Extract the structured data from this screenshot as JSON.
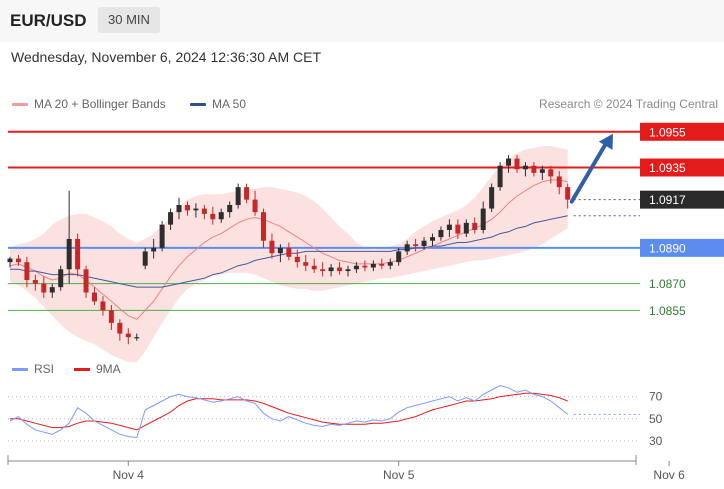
{
  "header": {
    "symbol": "EUR/USD",
    "timeframe": "30 MIN"
  },
  "datetime": "Wednesday, November 6, 2024 12:36:30 AM CET",
  "legend": {
    "ma20": "MA 20 + Bollinger Bands",
    "ma50": "MA 50",
    "research": "Research © 2024 Trading Central"
  },
  "colors": {
    "up": "#2e2e2e",
    "down": "#c62828",
    "resistance": "#e31b1b",
    "support": "#5b8def",
    "target": "#4caf50",
    "bb_fill": "#fcdcdc",
    "ma20": "#f08080",
    "ma50": "#3f5b9a",
    "rsi": "#7b9cff",
    "rsi_ma": "#e31b1b",
    "arrow": "#2f5fa7"
  },
  "chart_data": [
    {
      "type": "candlestick",
      "title": "EUR/USD 30 MIN",
      "ylim": [
        1.083,
        1.097
      ],
      "x_ticks": [
        "Nov 4",
        "Nov 5",
        "Nov 6"
      ],
      "x_tick_index": [
        14,
        46,
        78
      ],
      "candles": [
        [
          1.0882,
          1.0885,
          1.0879,
          1.0884
        ],
        [
          1.0884,
          1.0886,
          1.088,
          1.0882
        ],
        [
          1.0882,
          1.0885,
          1.0868,
          1.0872
        ],
        [
          1.0872,
          1.0875,
          1.0866,
          1.087
        ],
        [
          1.087,
          1.0874,
          1.0862,
          1.0865
        ],
        [
          1.0865,
          1.087,
          1.0862,
          1.0868
        ],
        [
          1.0868,
          1.088,
          1.0866,
          1.0878
        ],
        [
          1.0878,
          1.0922,
          1.087,
          1.0895
        ],
        [
          1.0895,
          1.0898,
          1.0874,
          1.0878
        ],
        [
          1.0878,
          1.088,
          1.0862,
          1.0865
        ],
        [
          1.0865,
          1.0868,
          1.0858,
          1.086
        ],
        [
          1.086,
          1.0863,
          1.0852,
          1.0855
        ],
        [
          1.0855,
          1.0858,
          1.0844,
          1.0848
        ],
        [
          1.0848,
          1.085,
          1.0838,
          1.0842
        ],
        [
          1.0842,
          1.0845,
          1.0836,
          1.084
        ],
        [
          1.084,
          1.0842,
          1.0838,
          1.084
        ],
        [
          1.088,
          1.089,
          1.0878,
          1.0888
        ],
        [
          1.0888,
          1.0895,
          1.0884,
          1.089
        ],
        [
          1.089,
          1.0905,
          1.0888,
          1.0903
        ],
        [
          1.0903,
          1.0912,
          1.09,
          1.091
        ],
        [
          1.091,
          1.0918,
          1.0906,
          1.0914
        ],
        [
          1.0914,
          1.0916,
          1.0908,
          1.0911
        ],
        [
          1.0911,
          1.0915,
          1.0907,
          1.0912
        ],
        [
          1.0912,
          1.0914,
          1.0906,
          1.0909
        ],
        [
          1.0909,
          1.0913,
          1.0903,
          1.0906
        ],
        [
          1.0906,
          1.0912,
          1.0904,
          1.091
        ],
        [
          1.091,
          1.0916,
          1.0907,
          1.0914
        ],
        [
          1.0914,
          1.0926,
          1.0912,
          1.0924
        ],
        [
          1.0924,
          1.0926,
          1.0915,
          1.0917
        ],
        [
          1.0917,
          1.0922,
          1.0908,
          1.091
        ],
        [
          1.091,
          1.0912,
          1.089,
          1.0894
        ],
        [
          1.0894,
          1.0898,
          1.0884,
          1.0887
        ],
        [
          1.0887,
          1.0892,
          1.0882,
          1.089
        ],
        [
          1.089,
          1.0893,
          1.0883,
          1.0885
        ],
        [
          1.0885,
          1.0889,
          1.0879,
          1.0882
        ],
        [
          1.0882,
          1.0886,
          1.0877,
          1.088
        ],
        [
          1.088,
          1.0884,
          1.0876,
          1.0878
        ],
        [
          1.0878,
          1.0882,
          1.0874,
          1.0877
        ],
        [
          1.0877,
          1.0881,
          1.0874,
          1.0879
        ],
        [
          1.0879,
          1.0882,
          1.0875,
          1.0877
        ],
        [
          1.0877,
          1.088,
          1.0874,
          1.0878
        ],
        [
          1.0878,
          1.0882,
          1.0876,
          1.088
        ],
        [
          1.088,
          1.0883,
          1.0877,
          1.0879
        ],
        [
          1.0879,
          1.0883,
          1.0877,
          1.0881
        ],
        [
          1.0881,
          1.0884,
          1.0878,
          1.088
        ],
        [
          1.088,
          1.0884,
          1.0878,
          1.0882
        ],
        [
          1.0882,
          1.089,
          1.088,
          1.0888
        ],
        [
          1.0888,
          1.0894,
          1.0886,
          1.0892
        ],
        [
          1.0892,
          1.0895,
          1.0888,
          1.0891
        ],
        [
          1.0891,
          1.0896,
          1.0889,
          1.0894
        ],
        [
          1.0894,
          1.0898,
          1.0891,
          1.0896
        ],
        [
          1.0896,
          1.0902,
          1.0894,
          1.09
        ],
        [
          1.09,
          1.0906,
          1.0896,
          1.0903
        ],
        [
          1.0903,
          1.0906,
          1.0895,
          1.0898
        ],
        [
          1.0898,
          1.0906,
          1.0896,
          1.0904
        ],
        [
          1.0904,
          1.0907,
          1.0898,
          1.09
        ],
        [
          1.09,
          1.0916,
          1.0898,
          1.0912
        ],
        [
          1.0912,
          1.0926,
          1.091,
          1.0924
        ],
        [
          1.0924,
          1.0938,
          1.0922,
          1.0936
        ],
        [
          1.0936,
          1.0942,
          1.0932,
          1.094
        ],
        [
          1.094,
          1.0942,
          1.0932,
          1.0934
        ],
        [
          1.0934,
          1.0938,
          1.093,
          1.0936
        ],
        [
          1.0936,
          1.0938,
          1.093,
          1.0932
        ],
        [
          1.0932,
          1.0936,
          1.0928,
          1.0934
        ],
        [
          1.0934,
          1.0936,
          1.0926,
          1.093
        ],
        [
          1.093,
          1.0933,
          1.092,
          1.0924
        ],
        [
          1.0924,
          1.0926,
          1.0912,
          1.0917
        ]
      ],
      "ma20": [
        1.088,
        1.0881,
        1.0879,
        1.0877,
        1.0874,
        1.0872,
        1.0873,
        1.0876,
        1.0875,
        1.0872,
        1.0868,
        1.0864,
        1.086,
        1.0856,
        1.0852,
        1.085,
        1.0855,
        1.086,
        1.0867,
        1.0874,
        1.088,
        1.0885,
        1.0889,
        1.0893,
        1.0896,
        1.0898,
        1.0901,
        1.0904,
        1.0906,
        1.0907,
        1.0906,
        1.0904,
        1.0902,
        1.0899,
        1.0896,
        1.0893,
        1.089,
        1.0887,
        1.0885,
        1.0883,
        1.0882,
        1.0881,
        1.0881,
        1.0881,
        1.0881,
        1.0882,
        1.0883,
        1.0885,
        1.0887,
        1.0889,
        1.0891,
        1.0893,
        1.0895,
        1.0897,
        1.0899,
        1.0901,
        1.0903,
        1.0906,
        1.091,
        1.0915,
        1.0919,
        1.0922,
        1.0925,
        1.0927,
        1.0928,
        1.0928,
        1.0927
      ],
      "ma50": [
        1.0878,
        1.0878,
        1.0877,
        1.0877,
        1.0876,
        1.0875,
        1.0875,
        1.0875,
        1.0875,
        1.0874,
        1.0873,
        1.0872,
        1.0871,
        1.087,
        1.0869,
        1.0868,
        1.0868,
        1.0868,
        1.0868,
        1.0869,
        1.087,
        1.0871,
        1.0872,
        1.0873,
        1.0875,
        1.0876,
        1.0878,
        1.088,
        1.0881,
        1.0883,
        1.0884,
        1.0885,
        1.0886,
        1.0887,
        1.0887,
        1.0888,
        1.0888,
        1.0888,
        1.0888,
        1.0888,
        1.0888,
        1.0888,
        1.0888,
        1.0888,
        1.0888,
        1.0888,
        1.0889,
        1.0889,
        1.089,
        1.089,
        1.0891,
        1.0891,
        1.0892,
        1.0893,
        1.0893,
        1.0894,
        1.0895,
        1.0896,
        1.0898,
        1.0899,
        1.0901,
        1.0902,
        1.0904,
        1.0905,
        1.0906,
        1.0907,
        1.0908
      ],
      "bb_upper": [
        1.089,
        1.0892,
        1.0893,
        1.0895,
        1.0898,
        1.0903,
        1.0906,
        1.0908,
        1.0909,
        1.0909,
        1.0907,
        1.0905,
        1.0902,
        1.0898,
        1.0895,
        1.0893,
        1.0895,
        1.0898,
        1.0902,
        1.0908,
        1.0913,
        1.0917,
        1.0919,
        1.092,
        1.092,
        1.092,
        1.0921,
        1.0922,
        1.0923,
        1.0923,
        1.0924,
        1.0924,
        1.0923,
        1.0922,
        1.0921,
        1.0919,
        1.0916,
        1.0912,
        1.0907,
        1.0902,
        1.0898,
        1.0893,
        1.089,
        1.0889,
        1.089,
        1.0891,
        1.0892,
        1.0895,
        1.0899,
        1.0902,
        1.0905,
        1.0907,
        1.0909,
        1.0911,
        1.0914,
        1.0918,
        1.0924,
        1.093,
        1.0936,
        1.094,
        1.0943,
        1.0945,
        1.0946,
        1.0947,
        1.0947,
        1.0946,
        1.0945
      ],
      "bb_lower": [
        1.0871,
        1.0869,
        1.0866,
        1.0862,
        1.0857,
        1.0852,
        1.0847,
        1.0843,
        1.084,
        1.0838,
        1.0836,
        1.0833,
        1.083,
        1.0828,
        1.0826,
        1.0826,
        1.0832,
        1.084,
        1.0848,
        1.0855,
        1.0862,
        1.0867,
        1.087,
        1.0872,
        1.0874,
        1.0875,
        1.0876,
        1.0876,
        1.0876,
        1.0875,
        1.0873,
        1.0871,
        1.0869,
        1.0868,
        1.0867,
        1.0867,
        1.0866,
        1.0866,
        1.0867,
        1.0868,
        1.0869,
        1.087,
        1.0871,
        1.0872,
        1.0873,
        1.0873,
        1.0874,
        1.0875,
        1.0876,
        1.0877,
        1.0878,
        1.0879,
        1.088,
        1.0881,
        1.0882,
        1.0883,
        1.0883,
        1.0884,
        1.0885,
        1.0886,
        1.0887,
        1.0888,
        1.089,
        1.0892,
        1.0895,
        1.0898,
        1.0901
      ],
      "levels": [
        {
          "label": "1.0955",
          "value": 1.0955,
          "kind": "resistance"
        },
        {
          "label": "1.0935",
          "value": 1.0935,
          "kind": "resistance"
        },
        {
          "label": "1.0917",
          "value": 1.0917,
          "kind": "current"
        },
        {
          "label": "1.0890",
          "value": 1.089,
          "kind": "pivot"
        },
        {
          "label": "1.0870",
          "value": 1.087,
          "kind": "support"
        },
        {
          "label": "1.0855",
          "value": 1.0855,
          "kind": "support"
        }
      ],
      "target_arrow": {
        "from": {
          "index": 66,
          "value": 1.0917
        },
        "to": {
          "index": 71,
          "value": 1.0955
        }
      }
    },
    {
      "type": "line",
      "title": "RSI",
      "ylim": [
        20,
        85
      ],
      "y_ticks": [
        "70",
        "50",
        "30"
      ],
      "y_tick_values": [
        70,
        50,
        30
      ],
      "series": [
        {
          "name": "RSI",
          "values": [
            48,
            52,
            45,
            40,
            38,
            36,
            40,
            46,
            60,
            55,
            48,
            44,
            40,
            36,
            34,
            33,
            58,
            62,
            66,
            70,
            72,
            70,
            69,
            67,
            65,
            66,
            68,
            70,
            66,
            64,
            55,
            50,
            48,
            52,
            49,
            46,
            44,
            43,
            45,
            44,
            46,
            48,
            47,
            49,
            48,
            50,
            56,
            60,
            62,
            64,
            66,
            68,
            70,
            66,
            69,
            66,
            72,
            76,
            80,
            78,
            74,
            76,
            72,
            70,
            66,
            60,
            54
          ]
        },
        {
          "name": "9MA",
          "values": [
            50,
            50,
            48,
            46,
            44,
            42,
            42,
            43,
            46,
            48,
            48,
            47,
            46,
            44,
            42,
            40,
            44,
            48,
            52,
            56,
            62,
            66,
            68,
            68,
            68,
            67,
            67,
            67,
            67,
            66,
            64,
            61,
            58,
            55,
            53,
            51,
            49,
            47,
            46,
            45,
            45,
            45,
            45,
            46,
            46,
            47,
            48,
            50,
            52,
            55,
            58,
            60,
            62,
            64,
            66,
            66,
            67,
            68,
            70,
            71,
            72,
            73,
            73,
            72,
            71,
            69,
            66
          ]
        }
      ]
    }
  ]
}
